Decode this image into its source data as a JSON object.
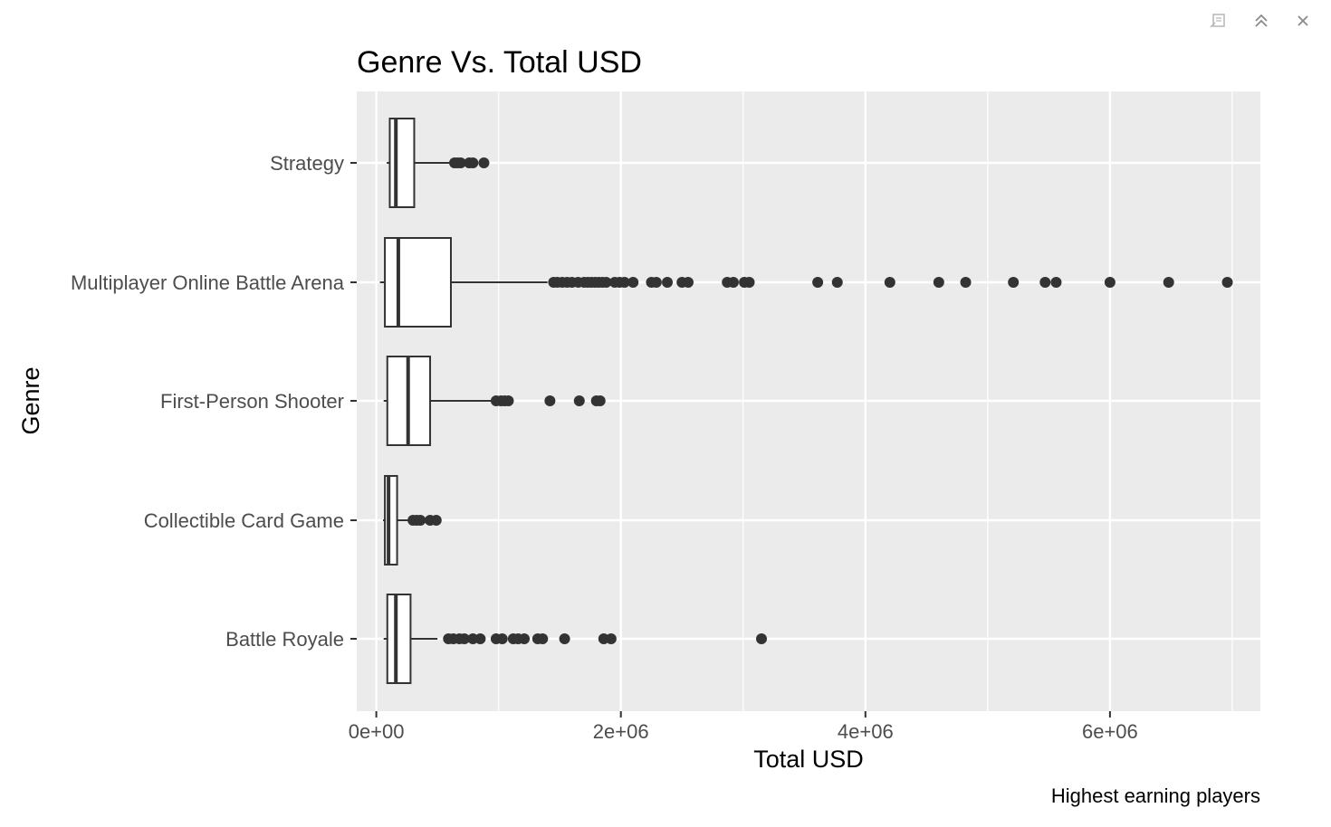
{
  "window": {
    "controls": [
      {
        "name": "popout-icon",
        "label": "Open in new window"
      },
      {
        "name": "collapse-icon",
        "label": "Collapse"
      },
      {
        "name": "close-icon",
        "label": "Close"
      }
    ]
  },
  "chart_data": {
    "type": "boxplot",
    "orientation": "horizontal",
    "title": "Genre Vs. Total USD",
    "xlabel": "Total USD",
    "ylabel": "Genre",
    "caption": "Highest earning players",
    "xlim": [
      -160000,
      7230000
    ],
    "xticks": [
      0,
      2000000,
      4000000,
      6000000
    ],
    "xtick_labels": [
      "0e+00",
      "2e+06",
      "4e+06",
      "6e+06"
    ],
    "grid": true,
    "categories": [
      "Strategy",
      "Multiplayer Online Battle Arena",
      "First-Person Shooter",
      "Collectible Card Game",
      "Battle Royale"
    ],
    "boxes": [
      {
        "category": "Strategy",
        "whisker_low": 85000,
        "q1": 110000,
        "median": 160000,
        "q3": 310000,
        "whisker_high": 620000,
        "outliers": [
          640000,
          665000,
          690000,
          760000,
          790000,
          880000
        ]
      },
      {
        "category": "Multiplayer Online Battle Arena",
        "whisker_low": 30000,
        "q1": 70000,
        "median": 180000,
        "q3": 610000,
        "whisker_high": 1400000,
        "outliers": [
          1450000,
          1480000,
          1520000,
          1560000,
          1600000,
          1650000,
          1700000,
          1730000,
          1760000,
          1790000,
          1820000,
          1850000,
          1880000,
          1950000,
          1990000,
          2030000,
          2100000,
          2250000,
          2290000,
          2380000,
          2500000,
          2550000,
          2870000,
          2920000,
          3010000,
          3050000,
          3610000,
          3770000,
          4200000,
          4600000,
          4820000,
          5210000,
          5470000,
          5560000,
          6000000,
          6480000,
          6960000
        ]
      },
      {
        "category": "First-Person Shooter",
        "whisker_low": 60000,
        "q1": 90000,
        "median": 260000,
        "q3": 440000,
        "whisker_high": 950000,
        "outliers": [
          980000,
          1020000,
          1050000,
          1080000,
          1420000,
          1660000,
          1800000,
          1830000
        ]
      },
      {
        "category": "Collectible Card Game",
        "whisker_low": 55000,
        "q1": 70000,
        "median": 100000,
        "q3": 170000,
        "whisker_high": 270000,
        "outliers": [
          300000,
          330000,
          360000,
          440000,
          490000
        ]
      },
      {
        "category": "Battle Royale",
        "whisker_low": 60000,
        "q1": 90000,
        "median": 160000,
        "q3": 280000,
        "whisker_high": 500000,
        "outliers": [
          590000,
          630000,
          680000,
          720000,
          790000,
          850000,
          980000,
          1030000,
          1120000,
          1160000,
          1210000,
          1320000,
          1360000,
          1540000,
          1860000,
          1920000,
          3150000
        ]
      }
    ],
    "colors": {
      "panel_bg": "#EBEBEB",
      "grid": "#FFFFFF",
      "box_fill": "#FFFFFF",
      "box_stroke": "#333333",
      "outlier": "#333333",
      "tick_text": "#4D4D4D",
      "title_text": "#000000"
    }
  }
}
